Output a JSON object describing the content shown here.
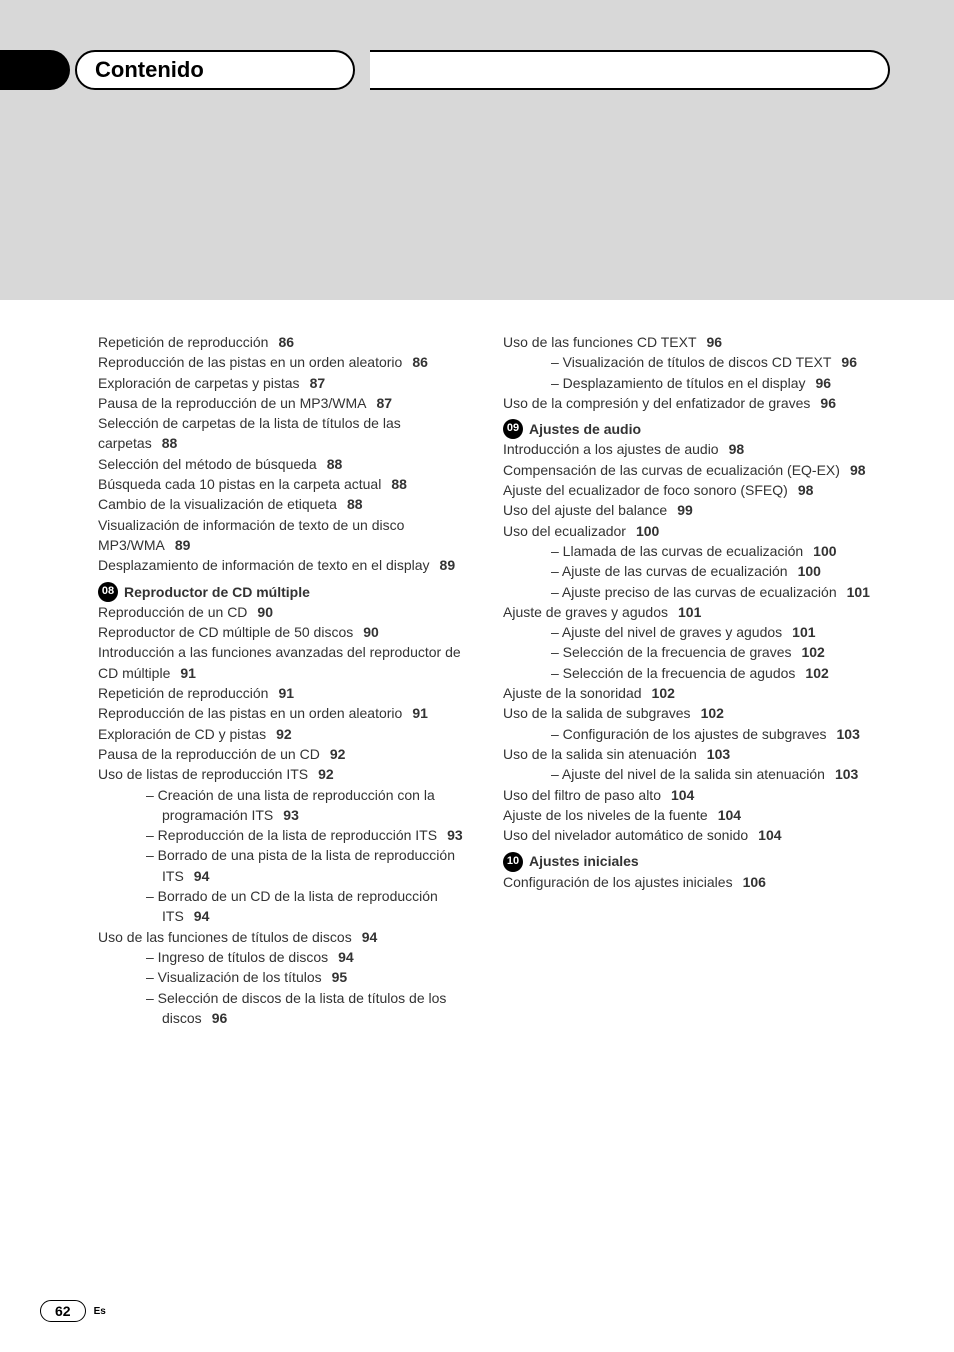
{
  "header": {
    "title": "Contenido"
  },
  "footer": {
    "page": "62",
    "lang": "Es"
  },
  "sections": {
    "s08": {
      "num": "08",
      "title": "Reproductor de CD múltiple"
    },
    "s09": {
      "num": "09",
      "title": "Ajustes de audio"
    },
    "s10": {
      "num": "10",
      "title": "Ajustes iniciales"
    }
  },
  "left": [
    {
      "t": "Repetición de reproducción",
      "p": "86",
      "lvl": 1
    },
    {
      "t": "Reproducción de las pistas en un orden aleatorio",
      "p": "86",
      "lvl": 1,
      "wrap": true
    },
    {
      "t": "Exploración de carpetas y pistas",
      "p": "87",
      "lvl": 1
    },
    {
      "t": "Pausa de la reproducción de un MP3/WMA",
      "p": "87",
      "lvl": 1,
      "wrap": true
    },
    {
      "t": "Selección de carpetas de la lista de títulos de las carpetas",
      "p": "88",
      "lvl": 1,
      "wrap": true
    },
    {
      "t": "Selección del método de búsqueda",
      "p": "88",
      "lvl": 1
    },
    {
      "t": "Búsqueda cada 10 pistas en la carpeta actual",
      "p": "88",
      "lvl": 1,
      "wrap": true
    },
    {
      "t": "Cambio de la visualización de etiqueta",
      "p": "88",
      "lvl": 1
    },
    {
      "t": "Visualización de información de texto de un disco MP3/WMA",
      "p": "89",
      "lvl": 1,
      "wrap": true
    },
    {
      "t": "Desplazamiento de información de texto en el display",
      "p": "89",
      "lvl": 1,
      "wrap": true
    }
  ],
  "left08": [
    {
      "t": "Reproducción de un CD",
      "p": "90",
      "lvl": 1
    },
    {
      "t": "Reproductor de CD múltiple de 50 discos",
      "p": "90",
      "lvl": 1,
      "wrap": true
    },
    {
      "t": "Introducción a las funciones avanzadas del reproductor de CD múltiple",
      "p": "91",
      "lvl": 1,
      "wrap": true
    },
    {
      "t": "Repetición de reproducción",
      "p": "91",
      "lvl": 1
    },
    {
      "t": "Reproducción de las pistas en un orden aleatorio",
      "p": "91",
      "lvl": 1,
      "wrap": true
    },
    {
      "t": "Exploración de CD y pistas",
      "p": "92",
      "lvl": 1
    },
    {
      "t": "Pausa de la reproducción de un CD",
      "p": "92",
      "lvl": 1
    },
    {
      "t": "Uso de listas de reproducción ITS",
      "p": "92",
      "lvl": 1
    },
    {
      "t": "Creación de una lista de reproducción con la programación ITS",
      "p": "93",
      "lvl": 3,
      "wrap": true
    },
    {
      "t": "Reproducción de la lista de reproducción ITS",
      "p": "93",
      "lvl": 3,
      "wrap": true
    },
    {
      "t": "Borrado de una pista de la lista de reproducción ITS",
      "p": "94",
      "lvl": 3,
      "wrap": true
    },
    {
      "t": "Borrado de un CD de la lista de reproducción ITS",
      "p": "94",
      "lvl": 3,
      "wrap": true
    },
    {
      "t": "Uso de las funciones de títulos de discos",
      "p": "94",
      "lvl": 1
    },
    {
      "t": "Ingreso de títulos de discos",
      "p": "94",
      "lvl": 3
    },
    {
      "t": "Visualización de los títulos",
      "p": "95",
      "lvl": 3
    },
    {
      "t": "Selección de discos de la lista de títulos de los discos",
      "p": "96",
      "lvl": 3,
      "wrap": true
    }
  ],
  "rightTop": [
    {
      "t": "Uso de las funciones CD TEXT",
      "p": "96",
      "lvl": 1
    },
    {
      "t": "Visualización de títulos de discos CD TEXT",
      "p": "96",
      "lvl": 3,
      "wrap": true
    },
    {
      "t": "Desplazamiento de títulos en el display",
      "p": "96",
      "lvl": 3,
      "wrap": true
    },
    {
      "t": "Uso de la compresión y del enfatizador de graves",
      "p": "96",
      "lvl": 1,
      "wrap": true
    }
  ],
  "right09": [
    {
      "t": "Introducción a los ajustes de audio",
      "p": "98",
      "lvl": 1
    },
    {
      "t": "Compensación de las curvas de ecualización (EQ-EX)",
      "p": "98",
      "lvl": 1,
      "wrap": true
    },
    {
      "t": "Ajuste del ecualizador de foco sonoro (SFEQ)",
      "p": "98",
      "lvl": 1,
      "wrap": true
    },
    {
      "t": "Uso del ajuste del balance",
      "p": "99",
      "lvl": 1
    },
    {
      "t": "Uso del ecualizador",
      "p": "100",
      "lvl": 1
    },
    {
      "t": "Llamada de las curvas de ecualización",
      "p": "100",
      "lvl": 3,
      "wrap": true
    },
    {
      "t": "Ajuste de las curvas de ecualización",
      "p": "100",
      "lvl": 3,
      "wrap": true
    },
    {
      "t": "Ajuste preciso de las curvas de ecualización",
      "p": "101",
      "lvl": 3,
      "wrap": true
    },
    {
      "t": "Ajuste de graves y agudos",
      "p": "101",
      "lvl": 1
    },
    {
      "t": "Ajuste del nivel de graves y agudos",
      "p": "101",
      "lvl": 3,
      "wrap": true
    },
    {
      "t": "Selección de la frecuencia de graves",
      "p": "102",
      "lvl": 3,
      "wrap": true
    },
    {
      "t": "Selección de la frecuencia de agudos",
      "p": "102",
      "lvl": 3,
      "wrap": true
    },
    {
      "t": "Ajuste de la sonoridad",
      "p": "102",
      "lvl": 1
    },
    {
      "t": "Uso de la salida de subgraves",
      "p": "102",
      "lvl": 1
    },
    {
      "t": "Configuración de los ajustes de subgraves",
      "p": "103",
      "lvl": 3,
      "wrap": true
    },
    {
      "t": "Uso de la salida sin atenuación",
      "p": "103",
      "lvl": 1
    },
    {
      "t": "Ajuste del nivel de la salida sin atenuación",
      "p": "103",
      "lvl": 3,
      "wrap": true
    },
    {
      "t": "Uso del filtro de paso alto",
      "p": "104",
      "lvl": 1
    },
    {
      "t": "Ajuste de los niveles de la fuente",
      "p": "104",
      "lvl": 1
    },
    {
      "t": "Uso del nivelador automático de sonido",
      "p": "104",
      "lvl": 1
    }
  ],
  "right10": [
    {
      "t": "Configuración de los ajustes iniciales",
      "p": "106",
      "lvl": 1
    }
  ]
}
